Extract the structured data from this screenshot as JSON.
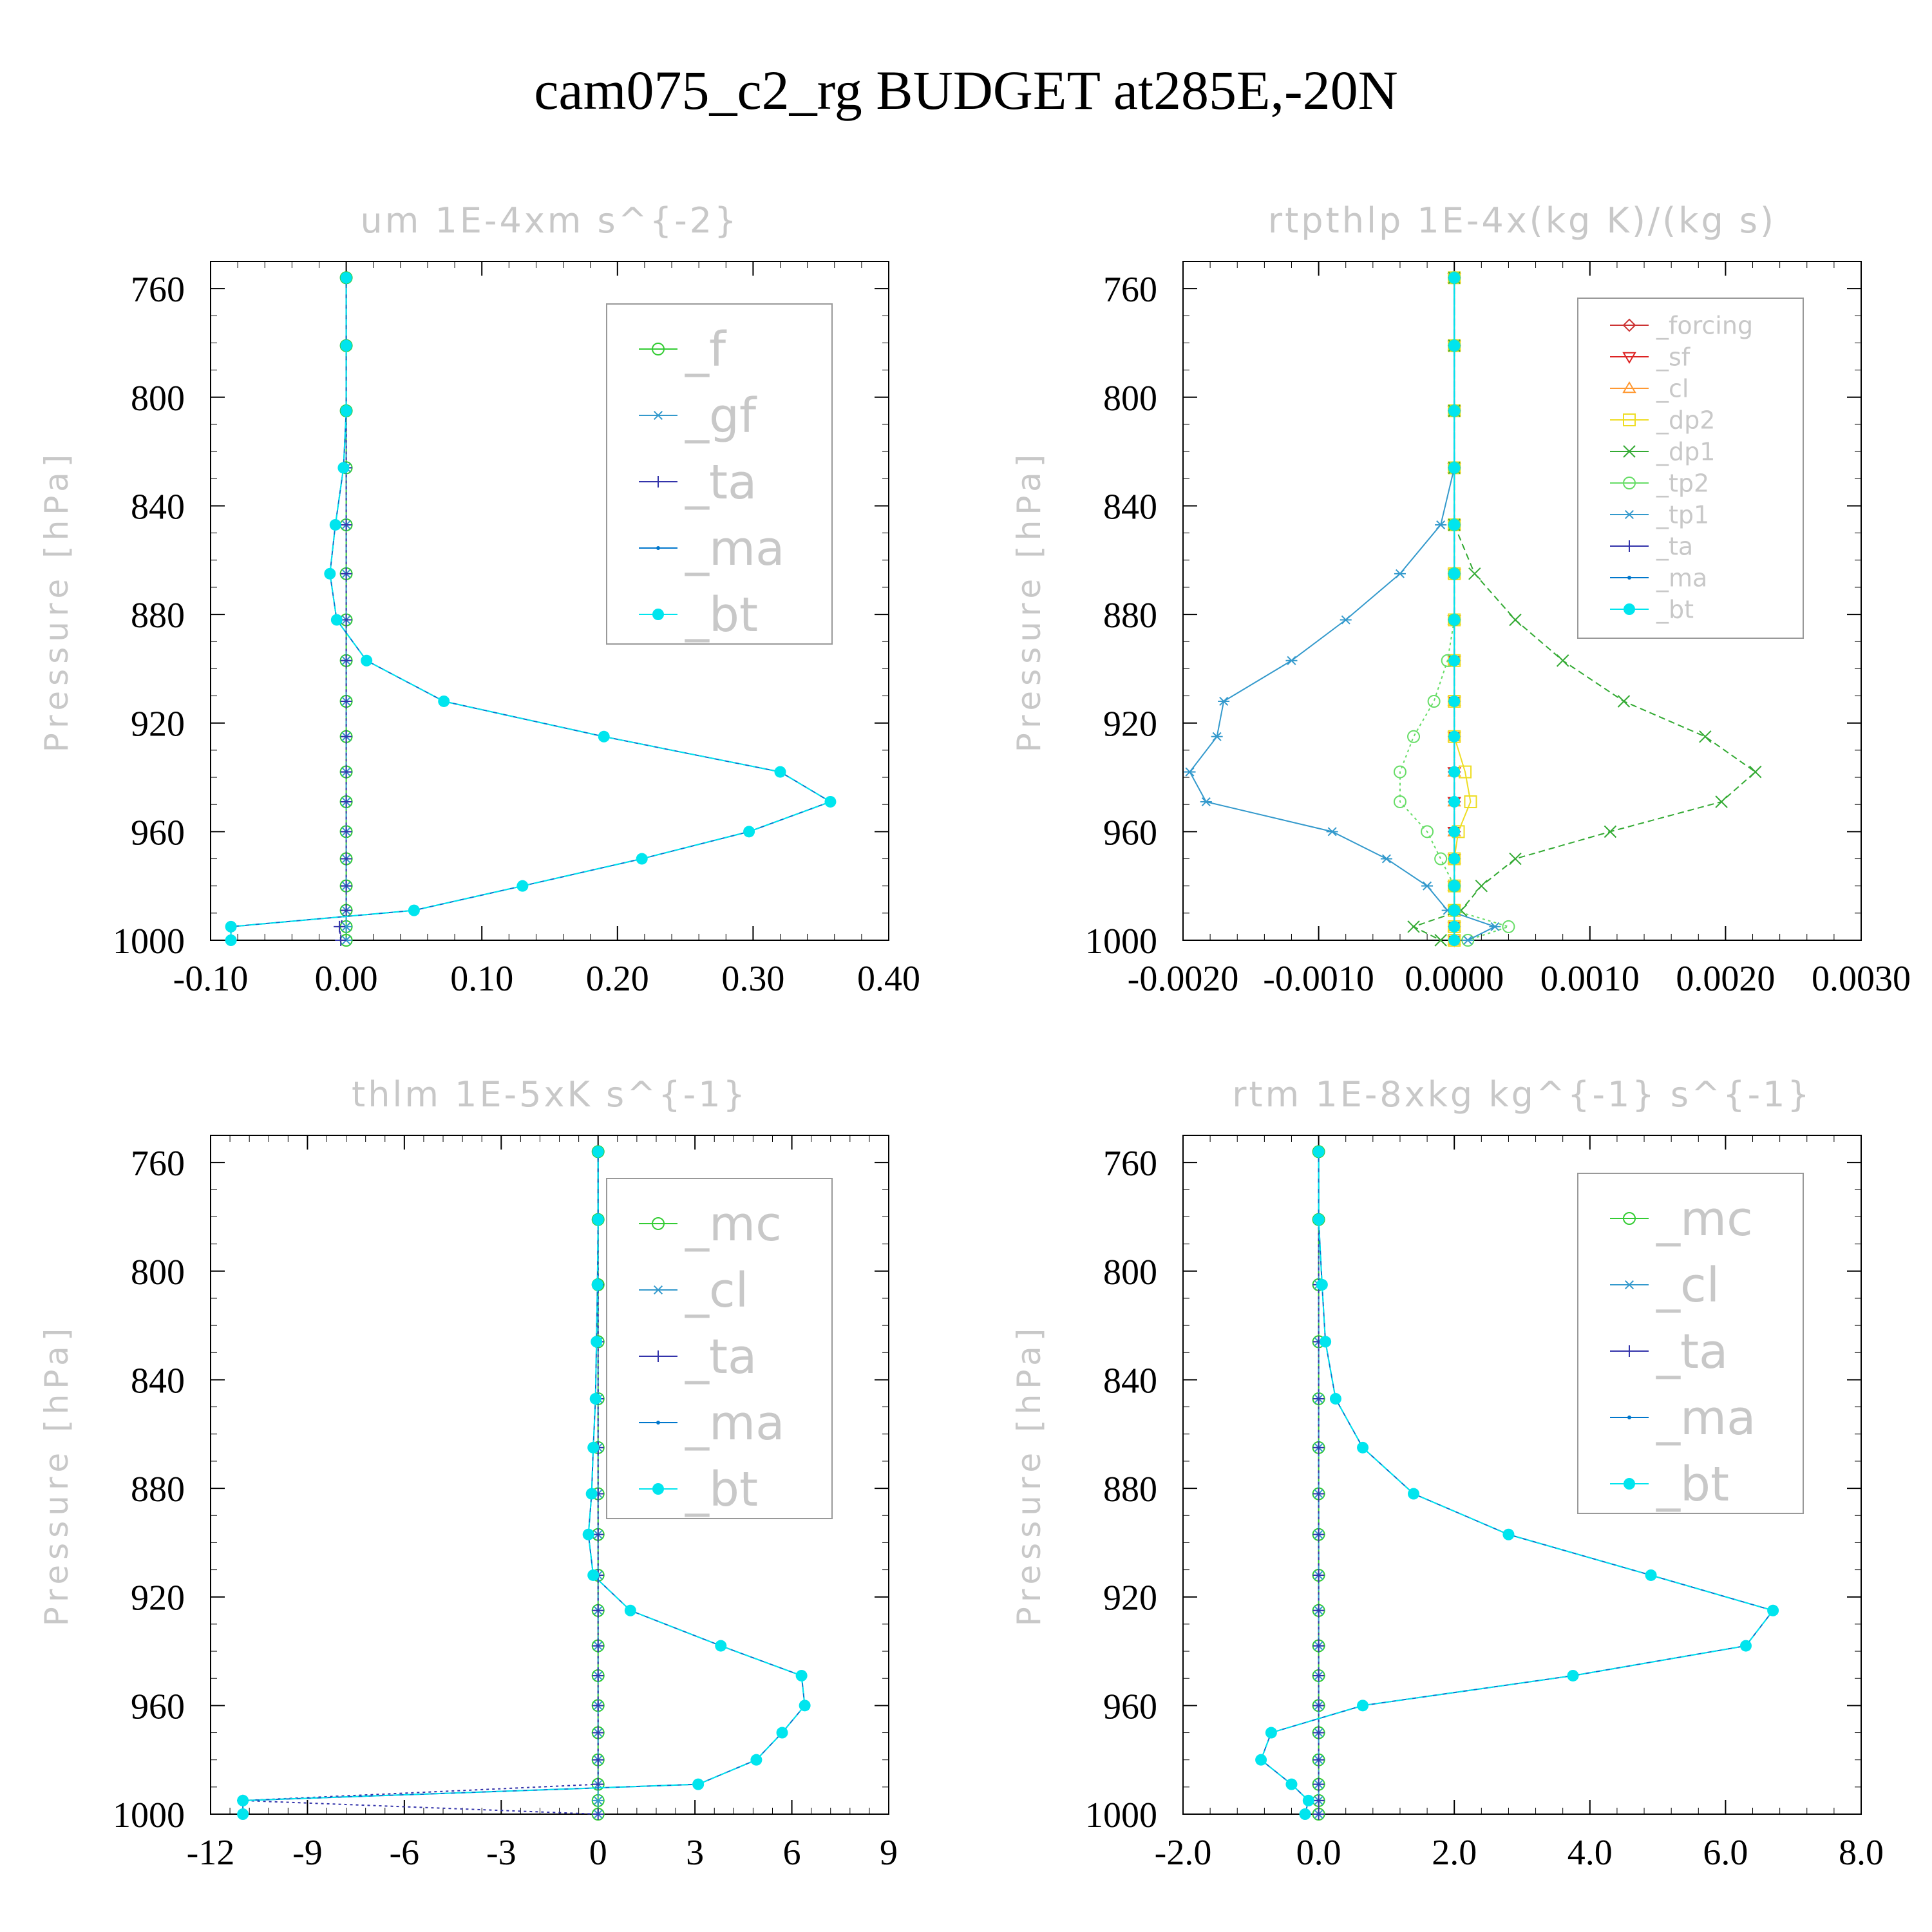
{
  "figure": {
    "title": "cam075_c2_rg  BUDGET at285E,-20N"
  },
  "chart_data": [
    {
      "type": "line",
      "title": "um  1E-4xm s^{-2}",
      "ylabel": "Pressure [hPa]",
      "xlim": [
        -0.1,
        0.4
      ],
      "ylim": [
        1000,
        750
      ],
      "xticks": [
        "-0.10",
        "0.00",
        "0.10",
        "0.20",
        "0.30",
        "0.40"
      ],
      "yticks": [
        "760",
        "800",
        "840",
        "880",
        "920",
        "960",
        "1000"
      ],
      "legend_size": "large",
      "levels": [
        756,
        781,
        805,
        826,
        847,
        865,
        882,
        897,
        912,
        925,
        938,
        949,
        960,
        970,
        980,
        989,
        995,
        1000
      ],
      "series": [
        {
          "name": "_f",
          "color": "#33cc33",
          "marker": "circle-open",
          "values": [
            0,
            0,
            0,
            0,
            0,
            0,
            0,
            0,
            0,
            0,
            0,
            0,
            0,
            0,
            0,
            0,
            0,
            0
          ]
        },
        {
          "name": "_gf",
          "color": "#3399cc",
          "marker": "asterisk",
          "values": [
            0,
            0,
            0,
            0,
            0,
            0,
            0,
            0,
            0,
            0,
            0,
            0,
            0,
            0,
            0,
            0,
            0,
            0
          ]
        },
        {
          "name": "_ta",
          "color": "#3333aa",
          "marker": "plus",
          "values": [
            0,
            0,
            0,
            0,
            0,
            0,
            0,
            0,
            0,
            0,
            0,
            0,
            0,
            0,
            0,
            0,
            -0.005,
            -0.004
          ]
        },
        {
          "name": "_ma",
          "color": "#0077cc",
          "marker": "dot",
          "values": [
            0,
            0,
            0,
            -0.002,
            -0.008,
            -0.012,
            -0.007,
            0.015,
            0.072,
            0.19,
            0.32,
            0.357,
            0.297,
            0.218,
            0.13,
            0.05,
            -0.085,
            -0.085
          ]
        },
        {
          "name": "_bt",
          "color": "#00e5ee",
          "marker": "filled-circle",
          "values": [
            0,
            0,
            0,
            -0.002,
            -0.008,
            -0.012,
            -0.007,
            0.015,
            0.072,
            0.19,
            0.32,
            0.357,
            0.297,
            0.218,
            0.13,
            0.05,
            -0.085,
            -0.085
          ]
        }
      ]
    },
    {
      "type": "line",
      "title": "rtpthlp  1E-4x(kg K)/(kg s)",
      "ylabel": "Pressure [hPa]",
      "xlim": [
        -0.002,
        0.003
      ],
      "ylim": [
        1000,
        750
      ],
      "xticks": [
        "-0.0020",
        "-0.0010",
        "0.0000",
        "0.0010",
        "0.0020",
        "0.0030"
      ],
      "yticks": [
        "760",
        "800",
        "840",
        "880",
        "920",
        "960",
        "1000"
      ],
      "legend_size": "small",
      "levels": [
        756,
        781,
        805,
        826,
        847,
        865,
        882,
        897,
        912,
        925,
        938,
        949,
        960,
        970,
        980,
        989,
        995,
        1000
      ],
      "series": [
        {
          "name": "_forcing",
          "color": "#cc3333",
          "marker": "diamond-open",
          "values": [
            0,
            0,
            0,
            0,
            0,
            0,
            0,
            0,
            0,
            0,
            0,
            0,
            0,
            0,
            0,
            0,
            0,
            0
          ]
        },
        {
          "name": "_sf",
          "color": "#dd2222",
          "marker": "triangle-down",
          "values": [
            0,
            0,
            0,
            0,
            0,
            0,
            0,
            0,
            0,
            0,
            0,
            0,
            0,
            0,
            0,
            0,
            0,
            0
          ]
        },
        {
          "name": "_cl",
          "color": "#ff9933",
          "marker": "triangle-up",
          "values": [
            0,
            0,
            0,
            0,
            0,
            0,
            0,
            0,
            0,
            0,
            0,
            0,
            0,
            0,
            0,
            0,
            0,
            0
          ]
        },
        {
          "name": "_dp2",
          "color": "#eedd22",
          "marker": "square-open",
          "values": [
            0,
            0,
            0,
            0,
            0,
            0,
            0,
            0,
            0,
            0,
            8e-05,
            0.00012,
            3e-05,
            0,
            0,
            0,
            0,
            0
          ]
        },
        {
          "name": "_dp1",
          "color": "#33aa33",
          "marker": "x",
          "values": [
            0,
            0,
            0,
            0,
            0,
            0.00015,
            0.00045,
            0.0008,
            0.00125,
            0.00185,
            0.00222,
            0.00197,
            0.00115,
            0.00045,
            0.0002,
            5e-05,
            -0.0003,
            -0.0001
          ]
        },
        {
          "name": "_tp2",
          "color": "#66dd66",
          "marker": "circle-open",
          "values": [
            0,
            0,
            0,
            0,
            0,
            0,
            0,
            -5e-05,
            -0.00015,
            -0.0003,
            -0.0004,
            -0.0004,
            -0.0002,
            -0.0001,
            0,
            0,
            0.0004,
            0.0001
          ]
        },
        {
          "name": "_tp1",
          "color": "#3399cc",
          "marker": "asterisk",
          "values": [
            0,
            0,
            0,
            0,
            -0.0001,
            -0.0004,
            -0.0008,
            -0.0012,
            -0.0017,
            -0.00175,
            -0.00195,
            -0.00183,
            -0.0009,
            -0.0005,
            -0.0002,
            -5e-05,
            0.0003,
            0.0001
          ]
        },
        {
          "name": "_ta",
          "color": "#3333aa",
          "marker": "plus",
          "values": [
            0,
            0,
            0,
            0,
            0,
            0,
            0,
            0,
            0,
            0,
            0,
            0,
            0,
            0,
            0,
            0,
            0,
            0
          ]
        },
        {
          "name": "_ma",
          "color": "#0077cc",
          "marker": "dot",
          "values": [
            0,
            0,
            0,
            0,
            0,
            0,
            0,
            0,
            0,
            0,
            0,
            0,
            0,
            0,
            0,
            0,
            0,
            0
          ]
        },
        {
          "name": "_bt",
          "color": "#00e5ee",
          "marker": "filled-circle",
          "values": [
            0,
            0,
            0,
            0,
            0,
            0,
            0,
            0,
            0,
            0,
            0,
            0,
            0,
            0,
            0,
            0,
            0,
            0
          ]
        }
      ]
    },
    {
      "type": "line",
      "title": "thlm  1E-5xK s^{-1}",
      "ylabel": "Pressure [hPa]",
      "xlim": [
        -12,
        9
      ],
      "ylim": [
        1000,
        750
      ],
      "xticks": [
        "-12",
        "-9",
        "-6",
        "-3",
        "0",
        "3",
        "6",
        "9"
      ],
      "yticks": [
        "760",
        "800",
        "840",
        "880",
        "920",
        "960",
        "1000"
      ],
      "legend_size": "large",
      "levels": [
        756,
        781,
        805,
        826,
        847,
        865,
        882,
        897,
        912,
        925,
        938,
        949,
        960,
        970,
        980,
        989,
        995,
        1000
      ],
      "series": [
        {
          "name": "_mc",
          "color": "#33cc33",
          "marker": "circle-open",
          "values": [
            0,
            0,
            0,
            0,
            0,
            0,
            0,
            0,
            0,
            0,
            0,
            0,
            0,
            0,
            0,
            0,
            0,
            0
          ]
        },
        {
          "name": "_cl",
          "color": "#3399cc",
          "marker": "asterisk",
          "values": [
            0,
            0,
            0,
            0,
            0,
            0,
            0,
            0,
            0,
            0,
            0,
            0,
            0,
            0,
            0,
            0,
            0,
            0
          ]
        },
        {
          "name": "_ta",
          "color": "#3333aa",
          "marker": "plus",
          "values": [
            0,
            0,
            0,
            0,
            0,
            0,
            0,
            0,
            0,
            0,
            0,
            0,
            0,
            0,
            0,
            0,
            -11,
            0
          ]
        },
        {
          "name": "_ma",
          "color": "#0077cc",
          "marker": "dot",
          "values": [
            0,
            0,
            -0.02,
            -0.05,
            -0.08,
            -0.15,
            -0.2,
            -0.3,
            -0.15,
            1,
            3.8,
            6.3,
            6.4,
            5.7,
            4.9,
            3.1,
            -11,
            -11
          ]
        },
        {
          "name": "_bt",
          "color": "#00e5ee",
          "marker": "filled-circle",
          "values": [
            0,
            0,
            -0.02,
            -0.05,
            -0.08,
            -0.15,
            -0.2,
            -0.3,
            -0.15,
            1,
            3.8,
            6.3,
            6.4,
            5.7,
            4.9,
            3.1,
            -11,
            -11
          ]
        }
      ]
    },
    {
      "type": "line",
      "title": "rtm  1E-8xkg kg^{-1} s^{-1}",
      "ylabel": "Pressure [hPa]",
      "xlim": [
        -2,
        8
      ],
      "ylim": [
        1000,
        750
      ],
      "xticks": [
        "-2.0",
        "0.0",
        "2.0",
        "4.0",
        "6.0",
        "8.0"
      ],
      "yticks": [
        "760",
        "800",
        "840",
        "880",
        "920",
        "960",
        "1000"
      ],
      "legend_size": "large",
      "levels": [
        756,
        781,
        805,
        826,
        847,
        865,
        882,
        897,
        912,
        925,
        938,
        949,
        960,
        970,
        980,
        989,
        995,
        1000
      ],
      "series": [
        {
          "name": "_mc",
          "color": "#33cc33",
          "marker": "circle-open",
          "values": [
            0,
            0,
            0,
            0,
            0,
            0,
            0,
            0,
            0,
            0,
            0,
            0,
            0,
            0,
            0,
            0,
            0,
            0
          ]
        },
        {
          "name": "_cl",
          "color": "#3399cc",
          "marker": "asterisk",
          "values": [
            0,
            0,
            0,
            0,
            0,
            0,
            0,
            0,
            0,
            0,
            0,
            0,
            0,
            0,
            0,
            0,
            0,
            0
          ]
        },
        {
          "name": "_ta",
          "color": "#3333aa",
          "marker": "plus",
          "values": [
            0,
            0,
            0,
            0,
            0,
            0,
            0,
            0,
            0,
            0,
            0,
            0,
            0,
            0,
            0,
            0,
            0,
            0
          ]
        },
        {
          "name": "_ma",
          "color": "#0077cc",
          "marker": "dot",
          "values": [
            0,
            0,
            0.05,
            0.1,
            0.25,
            0.65,
            1.4,
            2.8,
            4.9,
            6.7,
            6.3,
            3.75,
            0.65,
            -0.7,
            -0.85,
            -0.4,
            -0.15,
            -0.2
          ]
        },
        {
          "name": "_bt",
          "color": "#00e5ee",
          "marker": "filled-circle",
          "values": [
            0,
            0,
            0.05,
            0.1,
            0.25,
            0.65,
            1.4,
            2.8,
            4.9,
            6.7,
            6.3,
            3.75,
            0.65,
            -0.7,
            -0.85,
            -0.4,
            -0.15,
            -0.2
          ]
        }
      ]
    }
  ]
}
